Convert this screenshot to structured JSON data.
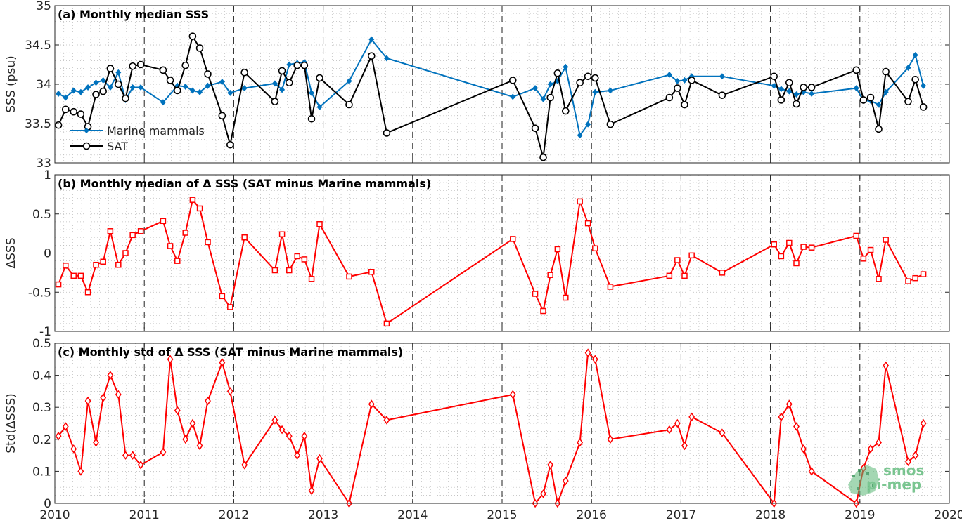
{
  "logo": {
    "line1": "smos",
    "line2": "pi-mep"
  },
  "x_ticks": [
    "2010",
    "2011",
    "2012",
    "2013",
    "2014",
    "2015",
    "2016",
    "2017",
    "2018",
    "2019",
    "2020"
  ],
  "colors": {
    "mammals": "#0072BD",
    "sat": "#000000",
    "delta": "#FF0000",
    "logo": "#5cb878"
  },
  "chart_data": [
    {
      "type": "line",
      "title": "(a) Monthly median SSS",
      "ylabel": "SSS (psu)",
      "xlim": [
        2010,
        2020
      ],
      "ylim": [
        33,
        35
      ],
      "y_ticks": [
        "33",
        "33.5",
        "34",
        "34.5",
        "35"
      ],
      "grid": true,
      "legend_position": "bottom-left",
      "series": [
        {
          "name": "Marine mammals",
          "marker": "diamond",
          "x": [
            2010.04,
            2010.12,
            2010.21,
            2010.29,
            2010.37,
            2010.46,
            2010.54,
            2010.62,
            2010.71,
            2010.79,
            2010.87,
            2010.96,
            2011.21,
            2011.37,
            2011.46,
            2011.54,
            2011.62,
            2011.71,
            2011.87,
            2011.96,
            2012.12,
            2012.46,
            2012.54,
            2012.62,
            2012.71,
            2012.79,
            2012.87,
            2012.96,
            2013.29,
            2013.54,
            2013.71,
            2015.12,
            2015.37,
            2015.46,
            2015.54,
            2015.62,
            2015.71,
            2015.87,
            2015.96,
            2016.04,
            2016.21,
            2016.87,
            2016.96,
            2017.04,
            2017.12,
            2017.46,
            2018.04,
            2018.12,
            2018.21,
            2018.29,
            2018.37,
            2018.46,
            2018.96,
            2019.04,
            2019.12,
            2019.21,
            2019.29,
            2019.54,
            2019.62,
            2019.71
          ],
          "y": [
            33.88,
            33.83,
            33.92,
            33.9,
            33.96,
            34.02,
            34.05,
            33.96,
            34.15,
            33.8,
            33.96,
            33.96,
            33.77,
            33.98,
            33.97,
            33.92,
            33.9,
            33.98,
            34.03,
            33.89,
            33.95,
            34.01,
            33.93,
            34.25,
            34.27,
            34.28,
            33.89,
            33.71,
            34.04,
            34.57,
            34.33,
            33.84,
            33.95,
            33.81,
            34.0,
            34.04,
            34.22,
            33.35,
            33.49,
            33.9,
            33.92,
            34.12,
            34.04,
            34.05,
            34.1,
            34.1,
            33.98,
            33.94,
            33.91,
            33.87,
            33.9,
            33.88,
            33.95,
            33.79,
            33.79,
            33.74,
            33.9,
            34.21,
            34.37,
            33.98
          ]
        },
        {
          "name": "SAT",
          "marker": "circle",
          "x": [
            2010.04,
            2010.12,
            2010.21,
            2010.29,
            2010.37,
            2010.46,
            2010.54,
            2010.62,
            2010.71,
            2010.79,
            2010.87,
            2010.96,
            2011.21,
            2011.29,
            2011.37,
            2011.46,
            2011.54,
            2011.62,
            2011.71,
            2011.87,
            2011.96,
            2012.12,
            2012.46,
            2012.54,
            2012.62,
            2012.71,
            2012.79,
            2012.87,
            2012.96,
            2013.29,
            2013.54,
            2013.71,
            2015.12,
            2015.37,
            2015.46,
            2015.54,
            2015.62,
            2015.71,
            2015.87,
            2015.96,
            2016.04,
            2016.21,
            2016.87,
            2016.96,
            2017.04,
            2017.12,
            2017.46,
            2018.04,
            2018.12,
            2018.21,
            2018.29,
            2018.37,
            2018.46,
            2018.96,
            2019.04,
            2019.12,
            2019.21,
            2019.29,
            2019.54,
            2019.62,
            2019.71
          ],
          "y": [
            33.48,
            33.68,
            33.65,
            33.62,
            33.46,
            33.87,
            33.91,
            34.2,
            34.0,
            33.82,
            34.23,
            34.25,
            34.18,
            34.05,
            33.92,
            34.24,
            34.61,
            34.46,
            34.13,
            33.6,
            33.23,
            34.15,
            33.78,
            34.17,
            34.02,
            34.24,
            34.24,
            33.56,
            34.08,
            33.74,
            34.36,
            33.38,
            34.05,
            33.44,
            33.07,
            33.83,
            34.14,
            33.66,
            34.02,
            34.1,
            34.08,
            33.49,
            33.83,
            33.95,
            33.74,
            34.05,
            33.86,
            34.1,
            33.8,
            34.02,
            33.75,
            33.96,
            33.96,
            34.18,
            33.8,
            33.83,
            33.43,
            34.16,
            33.78,
            34.06,
            33.71
          ]
        }
      ]
    },
    {
      "type": "line",
      "title": "(b) Monthly median of Δ SSS (SAT minus Marine mammals)",
      "ylabel": "ΔSSS",
      "xlim": [
        2010,
        2020
      ],
      "ylim": [
        -1,
        1
      ],
      "y_ticks": [
        "-1",
        "-0.5",
        "0",
        "0.5",
        "1"
      ],
      "grid": true,
      "zero_line": true,
      "series": [
        {
          "marker": "square",
          "x": [
            2010.04,
            2010.12,
            2010.21,
            2010.29,
            2010.37,
            2010.46,
            2010.54,
            2010.62,
            2010.71,
            2010.79,
            2010.87,
            2010.96,
            2011.21,
            2011.29,
            2011.37,
            2011.46,
            2011.54,
            2011.62,
            2011.71,
            2011.87,
            2011.96,
            2012.12,
            2012.46,
            2012.54,
            2012.62,
            2012.71,
            2012.79,
            2012.87,
            2012.96,
            2013.29,
            2013.54,
            2013.71,
            2015.12,
            2015.37,
            2015.46,
            2015.54,
            2015.62,
            2015.71,
            2015.87,
            2015.96,
            2016.04,
            2016.21,
            2016.87,
            2016.96,
            2017.04,
            2017.12,
            2017.46,
            2018.04,
            2018.12,
            2018.21,
            2018.29,
            2018.37,
            2018.46,
            2018.96,
            2019.04,
            2019.12,
            2019.21,
            2019.29,
            2019.54,
            2019.62,
            2019.71
          ],
          "y": [
            -0.4,
            -0.16,
            -0.29,
            -0.29,
            -0.5,
            -0.15,
            -0.11,
            0.28,
            -0.15,
            0.0,
            0.23,
            0.28,
            0.41,
            0.09,
            -0.1,
            0.26,
            0.68,
            0.57,
            0.14,
            -0.55,
            -0.69,
            0.2,
            -0.22,
            0.24,
            -0.22,
            -0.04,
            -0.08,
            -0.33,
            0.37,
            -0.3,
            -0.24,
            -0.9,
            0.18,
            -0.52,
            -0.74,
            -0.28,
            0.05,
            -0.57,
            0.66,
            0.38,
            0.06,
            -0.43,
            -0.29,
            -0.09,
            -0.29,
            -0.03,
            -0.25,
            0.11,
            -0.04,
            0.13,
            -0.13,
            0.08,
            0.07,
            0.22,
            -0.07,
            0.04,
            -0.33,
            0.17,
            -0.36,
            -0.32,
            -0.27
          ]
        }
      ]
    },
    {
      "type": "line",
      "title": "(c) Monthly std of Δ SSS (SAT minus Marine mammals)",
      "ylabel": "Std(ΔSSS)",
      "xlim": [
        2010,
        2020
      ],
      "ylim": [
        0,
        0.5
      ],
      "y_ticks": [
        "0",
        "0.1",
        "0.2",
        "0.3",
        "0.4",
        "0.5"
      ],
      "grid": true,
      "series": [
        {
          "marker": "diamond",
          "x": [
            2010.04,
            2010.12,
            2010.21,
            2010.29,
            2010.37,
            2010.46,
            2010.54,
            2010.62,
            2010.71,
            2010.79,
            2010.87,
            2010.96,
            2011.21,
            2011.29,
            2011.37,
            2011.46,
            2011.54,
            2011.62,
            2011.71,
            2011.87,
            2011.96,
            2012.12,
            2012.46,
            2012.54,
            2012.62,
            2012.71,
            2012.79,
            2012.87,
            2012.96,
            2013.29,
            2013.54,
            2013.71,
            2015.12,
            2015.37,
            2015.46,
            2015.54,
            2015.62,
            2015.71,
            2015.87,
            2015.96,
            2016.04,
            2016.21,
            2016.87,
            2016.96,
            2017.04,
            2017.12,
            2017.46,
            2018.04,
            2018.12,
            2018.21,
            2018.29,
            2018.37,
            2018.46,
            2018.96,
            2019.04,
            2019.12,
            2019.21,
            2019.29,
            2019.54,
            2019.62,
            2019.71
          ],
          "y": [
            0.21,
            0.24,
            0.17,
            0.1,
            0.32,
            0.19,
            0.33,
            0.4,
            0.34,
            0.15,
            0.15,
            0.12,
            0.16,
            0.45,
            0.29,
            0.2,
            0.25,
            0.18,
            0.32,
            0.44,
            0.35,
            0.12,
            0.26,
            0.23,
            0.21,
            0.15,
            0.21,
            0.04,
            0.14,
            0.0,
            0.31,
            0.26,
            0.34,
            0.0,
            0.03,
            0.12,
            0.0,
            0.07,
            0.19,
            0.47,
            0.45,
            0.2,
            0.23,
            0.25,
            0.18,
            0.27,
            0.22,
            0.0,
            0.27,
            0.31,
            0.24,
            0.17,
            0.1,
            0.0,
            0.11,
            0.17,
            0.19,
            0.43,
            0.13,
            0.15,
            0.25
          ]
        }
      ]
    }
  ]
}
